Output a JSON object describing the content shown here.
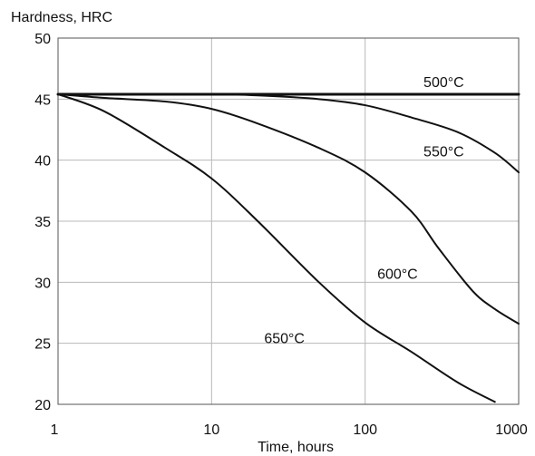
{
  "chart_data": {
    "type": "line",
    "title": "",
    "xlabel": "Time, hours",
    "ylabel": "Hardness,  HRC",
    "xscale": "log",
    "xlim": [
      1,
      1000
    ],
    "ylim": [
      20,
      50
    ],
    "x_ticks": [
      "1",
      "10",
      "100",
      "1000"
    ],
    "y_ticks": [
      "20",
      "25",
      "30",
      "35",
      "40",
      "45",
      "50"
    ],
    "grid": true,
    "legend": "none",
    "series": [
      {
        "name": "500°C",
        "x": [
          1,
          3,
          10,
          30,
          100,
          300,
          1000
        ],
        "y": [
          45.4,
          45.4,
          45.4,
          45.4,
          45.4,
          45.4,
          45.4
        ]
      },
      {
        "name": "550°C",
        "x": [
          1,
          2,
          5,
          10,
          20,
          50,
          100,
          200,
          400,
          700,
          1000
        ],
        "y": [
          45.4,
          45.4,
          45.4,
          45.4,
          45.3,
          45.0,
          44.5,
          43.5,
          42.3,
          40.6,
          39.0
        ]
      },
      {
        "name": "600°C",
        "x": [
          1,
          2,
          5,
          10,
          20,
          50,
          100,
          200,
          300,
          500,
          700,
          1000
        ],
        "y": [
          45.4,
          45.1,
          44.8,
          44.2,
          43.0,
          41.0,
          39.0,
          35.8,
          32.8,
          29.3,
          27.8,
          26.6
        ]
      },
      {
        "name": "650°C",
        "x": [
          1,
          2,
          5,
          10,
          20,
          50,
          100,
          200,
          400,
          700
        ],
        "y": [
          45.4,
          44.0,
          41.0,
          38.5,
          35.0,
          30.0,
          26.7,
          24.3,
          21.8,
          20.2
        ]
      }
    ]
  }
}
